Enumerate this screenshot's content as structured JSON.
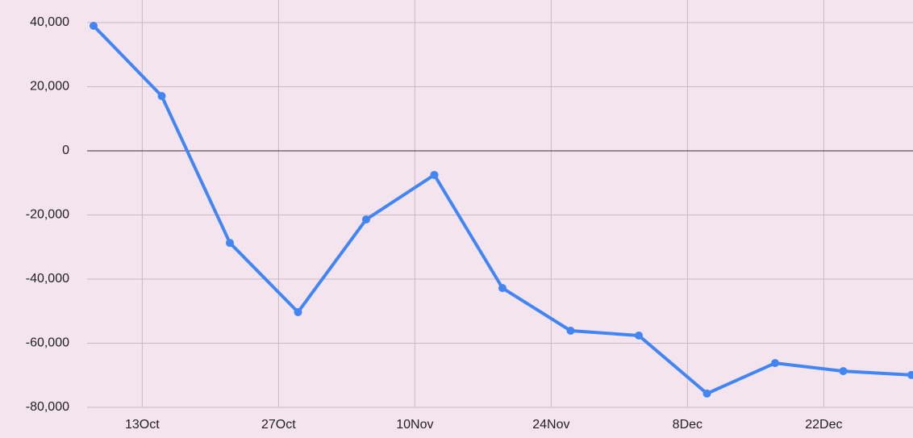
{
  "chart_data": {
    "type": "line",
    "x": [
      "8Oct",
      "15Oct",
      "22Oct",
      "29Oct",
      "5Nov",
      "12Nov",
      "19Nov",
      "26Nov",
      "3Dec",
      "10Dec",
      "17Dec",
      "24Dec",
      "31Dec"
    ],
    "series": [
      {
        "color": "#4285f4",
        "values": [
          39000,
          17100,
          -28700,
          -50300,
          -21400,
          -7500,
          -42800,
          -56100,
          -57600,
          -75700,
          -66200,
          -68700,
          -69900
        ]
      }
    ],
    "xlim": [
      "8Oct",
      "31Dec"
    ],
    "xticks": [
      "13Oct",
      "27Oct",
      "10Nov",
      "24Nov",
      "8Dec",
      "22Dec"
    ],
    "ylim": [
      -80000,
      40000
    ],
    "yticks": [
      {
        "value": -80000,
        "label": "-80,000"
      },
      {
        "value": -60000,
        "label": "-60,000"
      },
      {
        "value": -40000,
        "label": "-40,000"
      },
      {
        "value": -20000,
        "label": "-20,000"
      },
      0,
      {
        "value": 20000,
        "label": "20,000"
      },
      {
        "value": 40000,
        "label": "40,000"
      }
    ],
    "grid": true
  }
}
